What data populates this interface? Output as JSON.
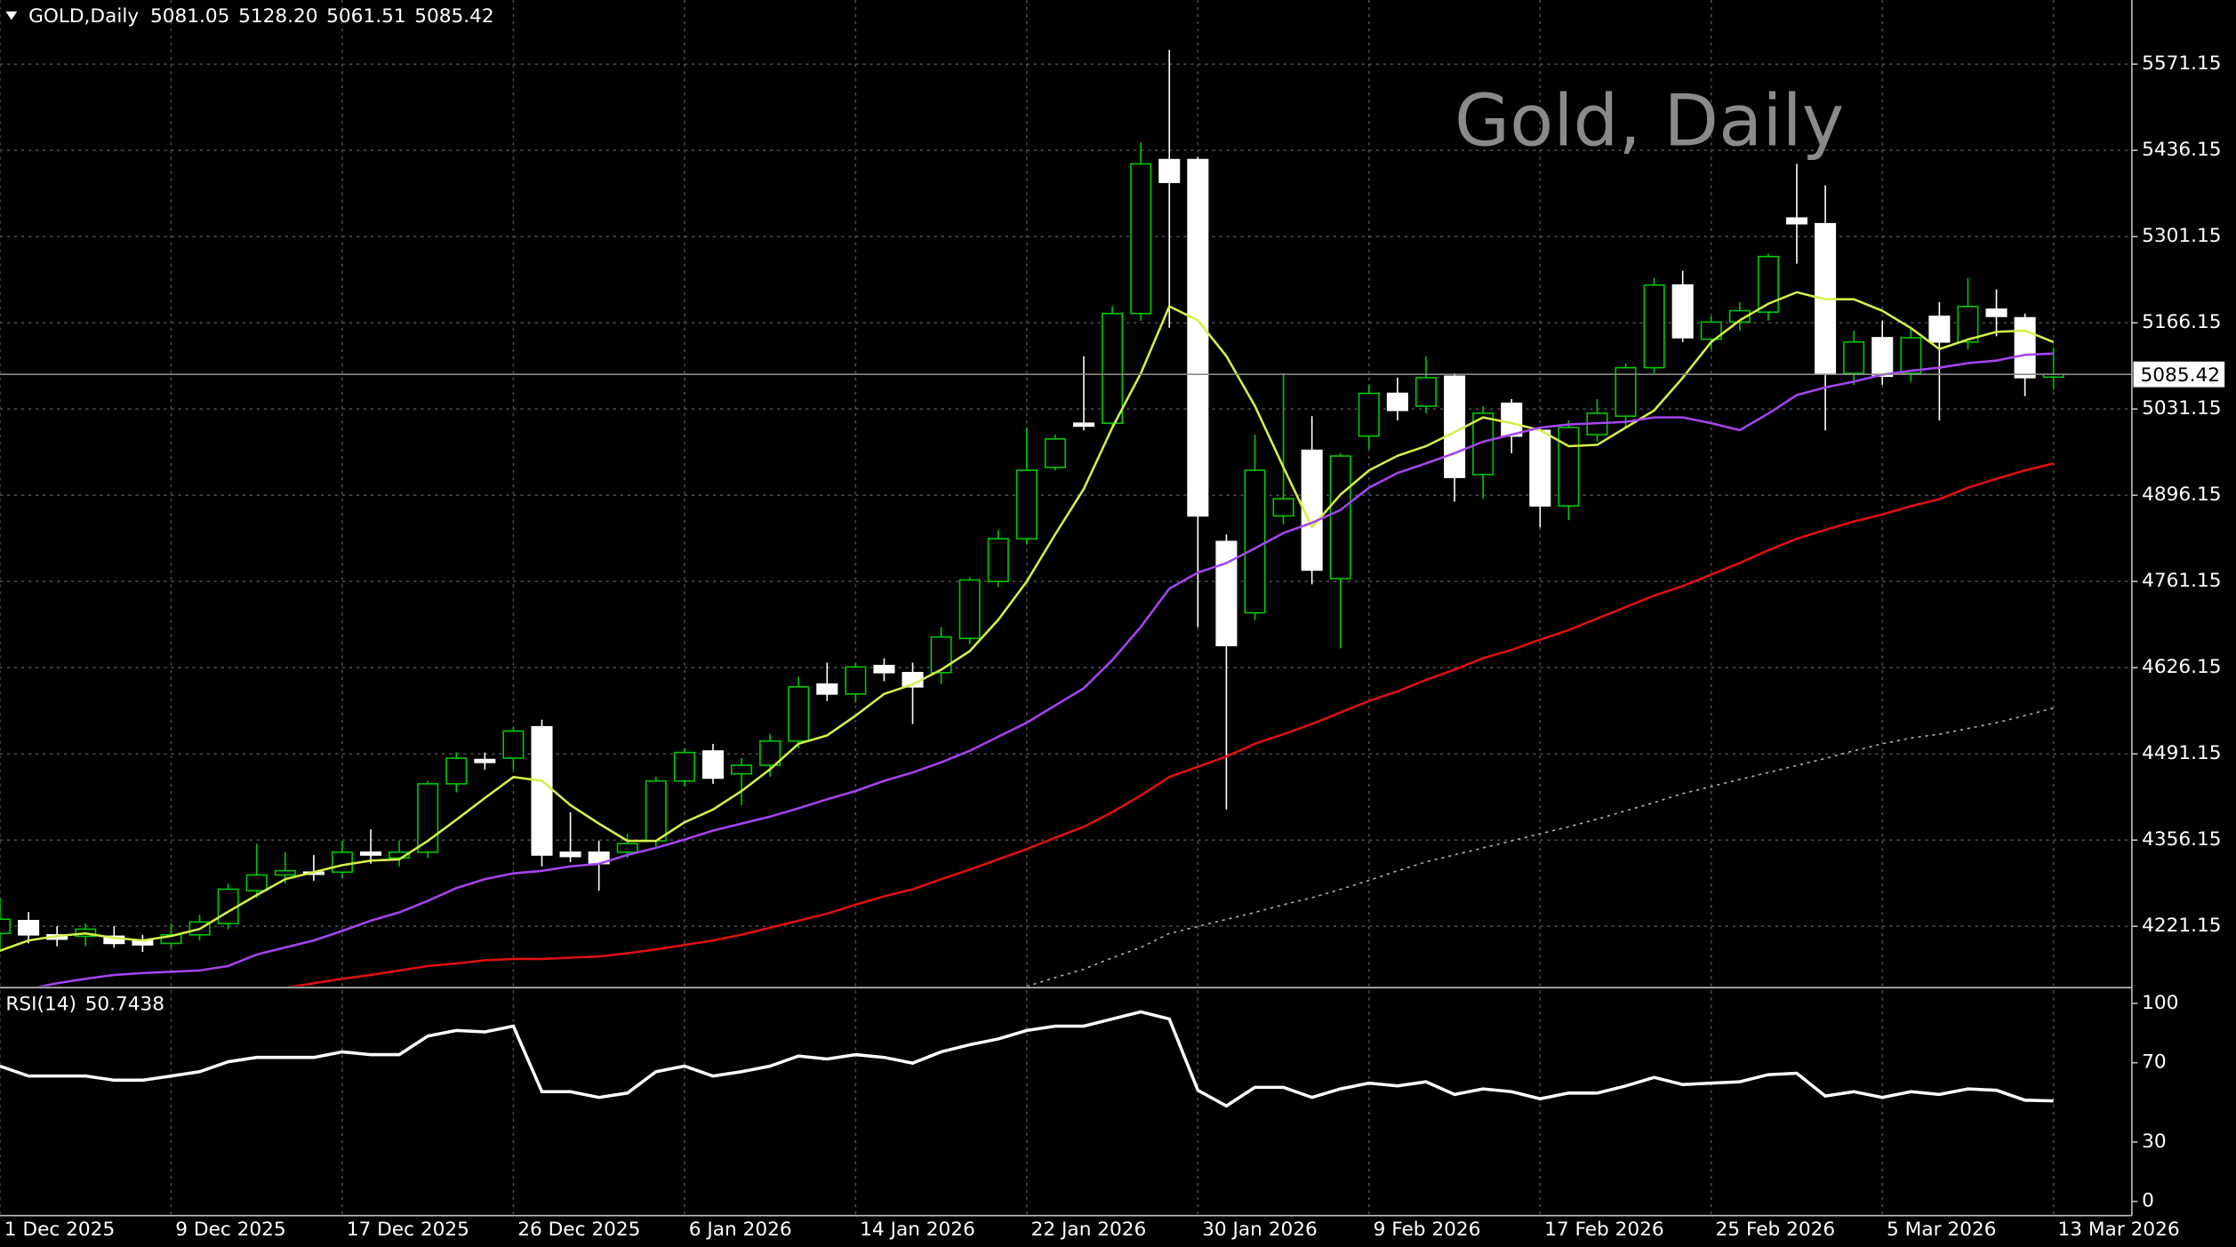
{
  "chart_data": [
    {
      "type": "candlestick",
      "title": "Gold, Daily",
      "symbol": "GOLD,Daily",
      "quote_labels": [
        "5081.05",
        "5128.20",
        "5061.51",
        "5085.42"
      ],
      "categories": [
        "1 Dec 2025",
        null,
        null,
        null,
        null,
        null,
        "9 Dec 2025",
        null,
        null,
        null,
        null,
        null,
        "17 Dec 2025",
        null,
        null,
        null,
        null,
        null,
        "26 Dec 2025",
        null,
        null,
        null,
        null,
        null,
        "6 Jan 2026",
        null,
        null,
        null,
        null,
        null,
        "14 Jan 2026",
        null,
        null,
        null,
        null,
        null,
        "22 Jan 2026",
        null,
        null,
        null,
        null,
        null,
        "30 Jan 2026",
        null,
        null,
        null,
        null,
        null,
        "9 Feb 2026",
        null,
        null,
        null,
        null,
        null,
        "17 Feb 2026",
        null,
        null,
        null,
        null,
        null,
        "25 Feb 2026",
        null,
        null,
        null,
        null,
        null,
        "5 Mar 2026",
        null,
        null,
        null,
        null,
        null,
        "13 Mar 2026"
      ],
      "open": [
        4210.0,
        4230.1,
        4207.8,
        4205.6,
        4205.6,
        4198.9,
        4194.4,
        4207.8,
        4225.6,
        4277.0,
        4301.5,
        4306.0,
        4306.0,
        4337.2,
        4328.3,
        4337.2,
        4444.3,
        4482.3,
        4484.5,
        4533.6,
        4337.2,
        4337.2,
        4337.2,
        4355.1,
        4448.8,
        4495.6,
        4459.9,
        4473.3,
        4511.3,
        4600.5,
        4584.9,
        4629.5,
        4618.4,
        4618.4,
        4671.9,
        4761.2,
        4828.1,
        4939.7,
        5008.9,
        5008.9,
        5180.7,
        5421.7,
        5421.7,
        4823.7,
        4712.1,
        4863.8,
        4966.5,
        4765.6,
        4988.8,
        5055.7,
        5035.6,
        5082.5,
        4928.5,
        5040.1,
        4997.7,
        4879.5,
        4991.0,
        5020.0,
        5095.9,
        5225.3,
        5140.5,
        5167.3,
        5182.9,
        5330.2,
        5321.3,
        5087.0,
        5142.8,
        5087.0,
        5176.2,
        5136.1,
        5187.4,
        5174.0,
        5081.05
      ],
      "high": [
        4265.8,
        4243.5,
        4221.2,
        4225.6,
        4221.2,
        4207.8,
        4225.6,
        4239.0,
        4288.1,
        4350.6,
        4337.2,
        4332.8,
        4355.1,
        4372.9,
        4355.1,
        4448.8,
        4493.4,
        4493.4,
        4533.6,
        4544.7,
        4399.7,
        4355.1,
        4366.2,
        4455.5,
        4500.1,
        4506.8,
        4484.5,
        4522.4,
        4611.7,
        4634.0,
        4634.0,
        4640.7,
        4634.0,
        4689.8,
        4767.9,
        4841.5,
        5002.2,
        4991.0,
        5113.7,
        5191.8,
        5448.5,
        5593.5,
        5426.1,
        4834.8,
        4991.0,
        5087.0,
        5020.0,
        4962.0,
        5069.1,
        5080.3,
        5113.7,
        5087.0,
        5035.6,
        5046.8,
        5002.2,
        5013.3,
        5046.8,
        5102.6,
        5236.5,
        5247.6,
        5176.2,
        5198.5,
        5274.4,
        5415.0,
        5381.5,
        5153.9,
        5169.5,
        5158.4,
        5198.5,
        5236.5,
        5218.6,
        5180.7,
        5128.2
      ],
      "low": [
        4181.0,
        4194.4,
        4189.9,
        4189.9,
        4187.7,
        4181.0,
        4187.7,
        4198.9,
        4216.7,
        4265.8,
        4288.1,
        4292.6,
        4297.1,
        4319.4,
        4314.9,
        4328.3,
        4430.9,
        4466.6,
        4466.6,
        4314.9,
        4321.6,
        4277.0,
        4328.3,
        4346.1,
        4439.9,
        4444.3,
        4410.9,
        4455.5,
        4500.1,
        4573.8,
        4571.5,
        4605.0,
        4538.0,
        4600.5,
        4663.0,
        4752.3,
        4819.2,
        4935.2,
        4997.7,
        5002.2,
        5169.5,
        5158.4,
        4689.8,
        4404.2,
        4700.9,
        4850.4,
        4756.7,
        4656.3,
        4968.7,
        5013.3,
        5024.5,
        4886.1,
        4890.6,
        4962.0,
        4846.0,
        4857.1,
        4979.9,
        5002.2,
        5087.0,
        5136.1,
        5124.9,
        5153.9,
        5169.5,
        5258.8,
        4997.7,
        5069.1,
        5069.1,
        5073.6,
        5013.3,
        5124.9,
        5145.0,
        5051.3,
        5061.51
      ],
      "close": [
        4232.3,
        4207.8,
        4201.1,
        4216.7,
        4194.4,
        4192.2,
        4207.8,
        4227.9,
        4279.2,
        4301.5,
        4308.2,
        4303.8,
        4337.2,
        4332.8,
        4337.2,
        4444.3,
        4484.5,
        4477.8,
        4526.9,
        4332.8,
        4330.5,
        4319.4,
        4350.6,
        4448.8,
        4493.4,
        4453.2,
        4473.3,
        4511.3,
        4596.1,
        4584.9,
        4627.3,
        4618.4,
        4596.1,
        4674.2,
        4763.4,
        4828.1,
        4935.2,
        4984.3,
        5004.4,
        5180.7,
        5415.0,
        5386.0,
        4863.8,
        4660.8,
        4935.2,
        4890.6,
        4779.0,
        4957.6,
        5055.7,
        5029.0,
        5080.3,
        4924.1,
        5024.5,
        4988.8,
        4879.5,
        5002.2,
        5024.5,
        5095.9,
        5225.3,
        5142.8,
        5167.3,
        5185.2,
        5269.9,
        5321.3,
        5087.0,
        5136.1,
        5082.5,
        5142.8,
        5136.1,
        5191.8,
        5176.2,
        5080.3,
        5085.42
      ],
      "up_color": "#00c800",
      "down_color": "#ffffff",
      "overlays": [
        {
          "color": "#d4f04a",
          "values": [
            4183,
            4199,
            4206,
            4210,
            4203,
            4199,
            4206,
            4217,
            4244,
            4270,
            4295,
            4306,
            4317,
            4324,
            4326,
            4355,
            4388,
            4422,
            4455,
            4449,
            4411,
            4382,
            4355,
            4355,
            4384,
            4404,
            4433,
            4467,
            4507,
            4520,
            4551,
            4585,
            4600,
            4623,
            4652,
            4701,
            4761,
            4835,
            4906,
            5002,
            5087,
            5192,
            5170,
            5114,
            5036,
            4940,
            4846,
            4897,
            4935,
            4958,
            4973,
            4995,
            5018,
            5009,
            4998,
            4973,
            4975,
            5002,
            5029,
            5080,
            5136,
            5170,
            5196,
            5214,
            5203,
            5203,
            5185,
            5158,
            5125,
            5140,
            5152,
            5154,
            5136
          ]
        },
        {
          "color": "#a445f0",
          "values": [
            4116,
            4123,
            4132,
            4139,
            4145,
            4148,
            4150,
            4152,
            4159,
            4177,
            4188,
            4199,
            4214,
            4230,
            4243,
            4261,
            4281,
            4295,
            4304,
            4308,
            4315,
            4319,
            4333,
            4344,
            4357,
            4371,
            4382,
            4393,
            4406,
            4420,
            4433,
            4449,
            4462,
            4478,
            4496,
            4518,
            4540,
            4567,
            4594,
            4638,
            4690,
            4750,
            4775,
            4790,
            4813,
            4837,
            4853,
            4873,
            4908,
            4931,
            4946,
            4962,
            4980,
            4991,
            5002,
            5007,
            5009,
            5011,
            5018,
            5018,
            5009,
            4998,
            5024,
            5053,
            5065,
            5074,
            5085,
            5091,
            5096,
            5103,
            5107,
            5116,
            5118
          ]
        },
        {
          "color": "#e01010",
          "values": [
            null,
            null,
            null,
            null,
            null,
            null,
            null,
            null,
            null,
            null,
            4125,
            4132,
            4139,
            4145,
            4152,
            4159,
            4163,
            4168,
            4170,
            4170,
            4172,
            4174,
            4179,
            4185,
            4192,
            4199,
            4208,
            4219,
            4230,
            4241,
            4255,
            4268,
            4279,
            4295,
            4310,
            4326,
            4342,
            4360,
            4377,
            4400,
            4426,
            4455,
            4471,
            4487,
            4507,
            4522,
            4538,
            4556,
            4574,
            4589,
            4607,
            4623,
            4641,
            4654,
            4670,
            4685,
            4703,
            4721,
            4739,
            4754,
            4772,
            4790,
            4810,
            4828,
            4842,
            4855,
            4866,
            4879,
            4890,
            4908,
            4922,
            4935,
            4946
          ]
        },
        {
          "color": "#b0b0b0",
          "dashed": true,
          "values": [
            null,
            null,
            null,
            null,
            null,
            null,
            null,
            null,
            null,
            null,
            null,
            null,
            null,
            null,
            null,
            null,
            null,
            null,
            null,
            null,
            null,
            null,
            null,
            null,
            null,
            null,
            null,
            null,
            null,
            null,
            null,
            null,
            null,
            null,
            null,
            null,
            4127,
            4141,
            4154,
            4172,
            4188,
            4210,
            4221,
            4232,
            4243,
            4255,
            4266,
            4279,
            4293,
            4308,
            4322,
            4333,
            4344,
            4355,
            4366,
            4377,
            4389,
            4402,
            4415,
            4429,
            4440,
            4451,
            4462,
            4473,
            4484,
            4496,
            4507,
            4516,
            4522,
            4531,
            4540,
            4551,
            4563
          ]
        }
      ],
      "ylim": [
        4127.4,
        5671.6
      ],
      "yticks": [
        5571.15,
        5436.15,
        5301.15,
        5166.15,
        5031.15,
        4896.15,
        4761.15,
        4626.15,
        4491.15,
        4356.15,
        4221.15
      ],
      "grid": true
    },
    {
      "type": "line",
      "label": "RSI(14)",
      "color": "#ffffff",
      "values": [
        68.3,
        63.3,
        63.3,
        63.3,
        61.2,
        61.2,
        63.3,
        65.5,
        70.5,
        72.7,
        72.7,
        72.7,
        75.5,
        74.1,
        74.1,
        83.5,
        86.3,
        85.6,
        88.5,
        55.4,
        55.4,
        52.5,
        54.7,
        65.5,
        68.3,
        63.3,
        65.5,
        68.3,
        73.4,
        71.9,
        74.1,
        72.7,
        69.8,
        75.5,
        79.1,
        82.0,
        86.3,
        88.5,
        88.5,
        92.1,
        95.7,
        92.1,
        56.1,
        48.2,
        57.6,
        57.6,
        52.5,
        56.8,
        59.7,
        58.3,
        60.4,
        54.0,
        56.8,
        55.4,
        51.8,
        54.7,
        54.7,
        58.3,
        62.6,
        59.0,
        59.7,
        60.4,
        64.0,
        64.7,
        53.2,
        55.4,
        52.5,
        55.4,
        54.0,
        56.8,
        56.1,
        51.1,
        50.7438
      ],
      "ylim": [
        -7.2,
        106.5
      ],
      "yticks": [
        100,
        70,
        30,
        0
      ]
    }
  ]
}
